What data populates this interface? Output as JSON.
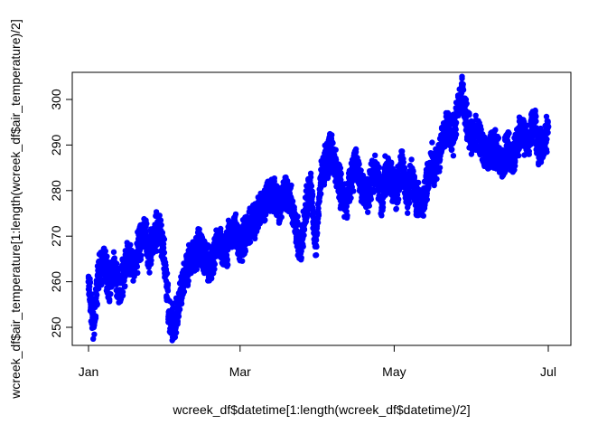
{
  "chart_data": {
    "type": "scatter",
    "xlabel": "wcreek_df$datetime[1:length(wcreek_df$datetime)/2]",
    "ylabel": "wcreek_df$air_temperature[1:length(wcreek_df$air_temperature)/2]",
    "xlim": [
      "2020-01-01",
      "2020-07-01"
    ],
    "ylim": [
      247,
      304.5
    ],
    "x_ticks": [
      {
        "value": "2020-01-01",
        "label": "Jan"
      },
      {
        "value": "2020-03-01",
        "label": "Mar"
      },
      {
        "value": "2020-05-01",
        "label": "May"
      },
      {
        "value": "2020-07-01",
        "label": "Jul"
      }
    ],
    "y_ticks": [
      250,
      260,
      270,
      280,
      290,
      300
    ],
    "grid": false,
    "marker_color": "#0000ff",
    "series": [
      {
        "x": [
          "2020-01-01",
          "2020-01-03",
          "2020-01-05",
          "2020-01-07",
          "2020-01-09",
          "2020-01-11",
          "2020-01-13",
          "2020-01-15",
          "2020-01-17",
          "2020-01-19",
          "2020-01-21",
          "2020-01-23",
          "2020-01-25",
          "2020-01-27",
          "2020-01-29",
          "2020-01-31",
          "2020-02-02",
          "2020-02-04",
          "2020-02-06",
          "2020-02-08",
          "2020-02-10",
          "2020-02-12",
          "2020-02-14",
          "2020-02-16",
          "2020-02-18",
          "2020-02-20",
          "2020-02-22",
          "2020-02-24",
          "2020-02-26",
          "2020-02-28",
          "2020-03-01",
          "2020-03-03",
          "2020-03-05",
          "2020-03-07",
          "2020-03-09",
          "2020-03-11",
          "2020-03-13",
          "2020-03-15",
          "2020-03-17",
          "2020-03-19",
          "2020-03-21",
          "2020-03-23",
          "2020-03-25",
          "2020-03-27",
          "2020-03-29",
          "2020-03-31",
          "2020-04-02",
          "2020-04-04",
          "2020-04-06",
          "2020-04-08",
          "2020-04-10",
          "2020-04-12",
          "2020-04-14",
          "2020-04-16",
          "2020-04-18",
          "2020-04-20",
          "2020-04-22",
          "2020-04-24",
          "2020-04-26",
          "2020-04-28",
          "2020-04-30",
          "2020-05-02",
          "2020-05-04",
          "2020-05-06",
          "2020-05-08",
          "2020-05-10",
          "2020-05-12",
          "2020-05-14",
          "2020-05-16",
          "2020-05-18",
          "2020-05-20",
          "2020-05-22",
          "2020-05-24",
          "2020-05-26",
          "2020-05-28",
          "2020-05-30",
          "2020-06-01",
          "2020-06-03",
          "2020-06-05",
          "2020-06-07",
          "2020-06-09",
          "2020-06-11",
          "2020-06-13",
          "2020-06-15",
          "2020-06-17",
          "2020-06-19",
          "2020-06-21",
          "2020-06-23",
          "2020-06-25",
          "2020-06-27",
          "2020-06-29",
          "2020-07-01"
        ],
        "y": [
          260,
          250,
          262,
          265,
          259,
          264,
          258,
          262,
          266,
          263,
          268,
          271,
          266,
          270,
          272,
          265,
          252,
          250,
          256,
          262,
          264,
          266,
          268,
          265,
          263,
          267,
          268,
          266,
          270,
          272,
          268,
          270,
          272,
          274,
          276,
          277,
          279,
          278,
          277,
          280,
          278,
          272,
          268,
          276,
          280,
          268,
          283,
          286,
          289,
          284,
          280,
          277,
          283,
          286,
          281,
          278,
          282,
          284,
          278,
          285,
          282,
          280,
          286,
          279,
          283,
          278,
          276,
          282,
          286,
          285,
          292,
          294,
          291,
          297,
          302,
          294,
          292,
          293,
          289,
          288,
          290,
          288,
          286,
          289,
          287,
          291,
          293,
          290,
          296,
          289,
          290,
          294
        ]
      }
    ]
  }
}
